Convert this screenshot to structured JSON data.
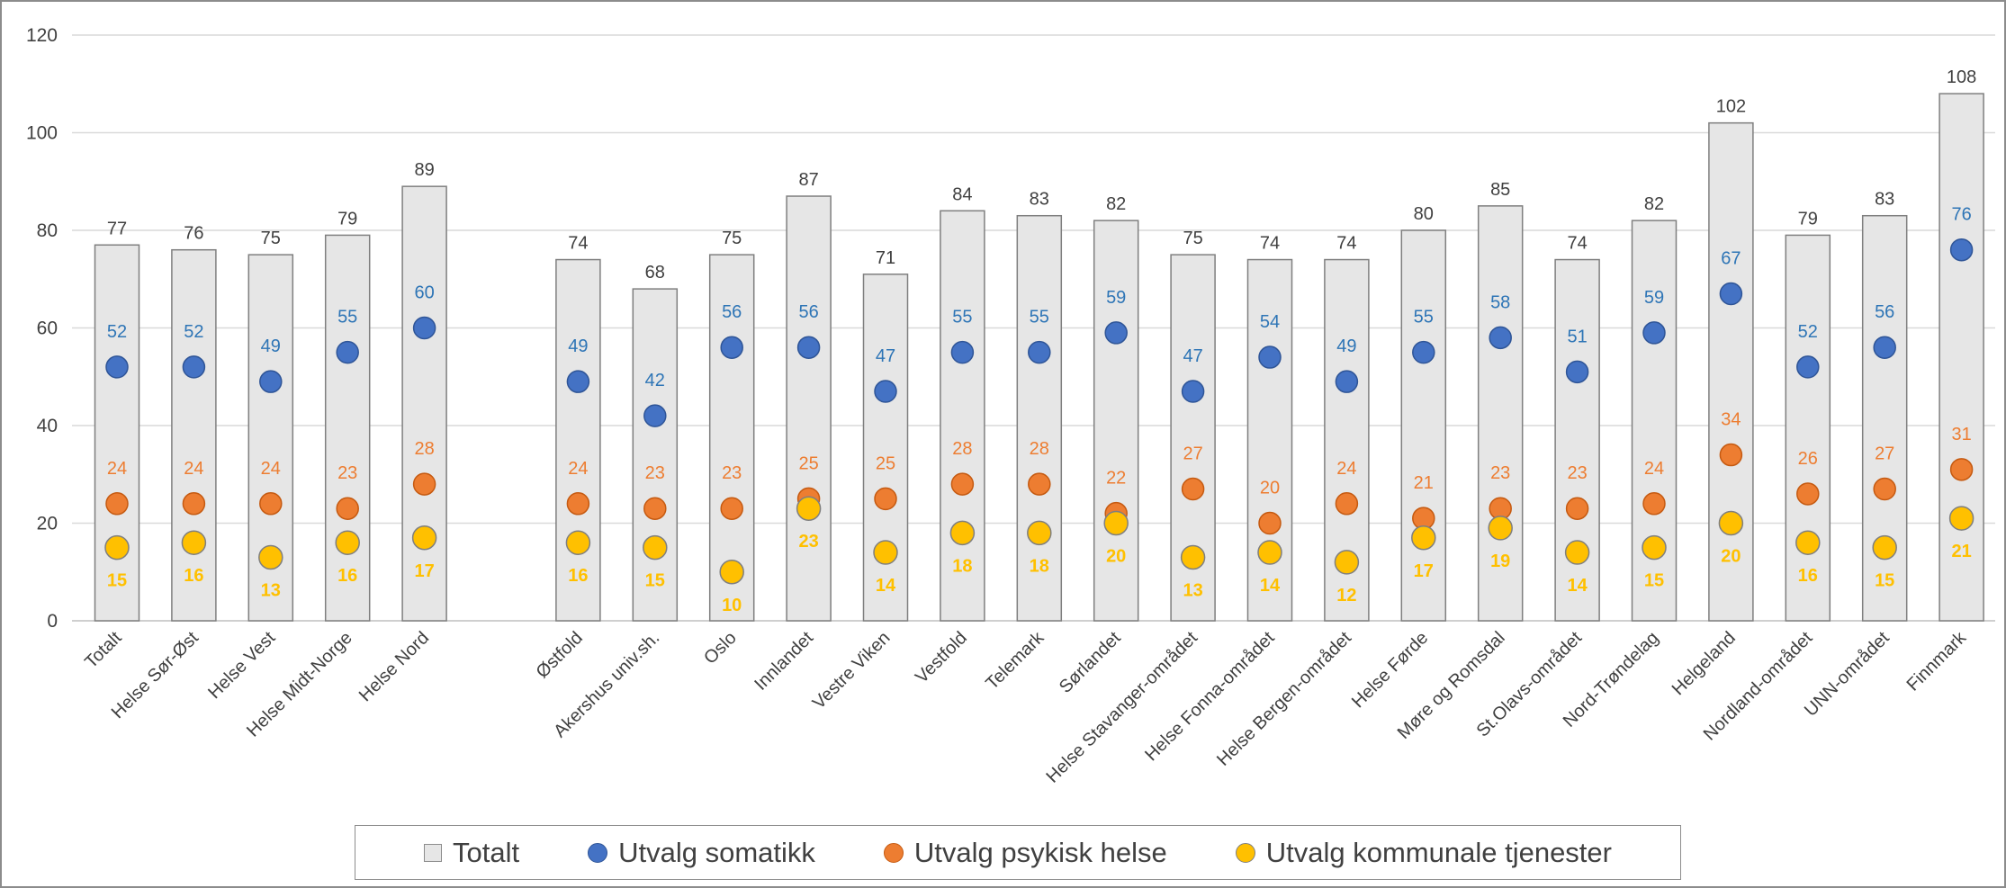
{
  "chart_data": {
    "type": "bar",
    "title": "",
    "xlabel": "",
    "ylabel": "",
    "ylim": [
      0,
      120
    ],
    "yticks": [
      0,
      20,
      40,
      60,
      80,
      100,
      120
    ],
    "grid": true,
    "legend_position": "bottom",
    "categories": [
      "Totalt",
      "Helse Sør-Øst",
      "Helse Vest",
      "Helse Midt-Norge",
      "Helse Nord",
      "Østfold",
      "Akershus univ.sh.",
      "Oslo",
      "Innlandet",
      "Vestre Viken",
      "Vestfold",
      "Telemark",
      "Sørlandet",
      "Helse Stavanger-området",
      "Helse Fonna-området",
      "Helse Bergen-området",
      "Helse Førde",
      "Møre og Romsdal",
      "St.Olavs-området",
      "Nord-Trøndelag",
      "Helgeland",
      "Nordland-området",
      "UNN-området",
      "Finnmark"
    ],
    "gap_after_index": 4,
    "series": [
      {
        "name": "Totalt",
        "kind": "bar",
        "color": "#e6e6e6",
        "values": [
          77,
          76,
          75,
          79,
          89,
          74,
          68,
          75,
          87,
          71,
          84,
          83,
          82,
          75,
          74,
          74,
          80,
          85,
          74,
          82,
          102,
          79,
          83,
          108
        ]
      },
      {
        "name": "Utvalg somatikk",
        "kind": "marker",
        "color": "#4472c4",
        "label_color": "#2e75b6",
        "values": [
          52,
          52,
          49,
          55,
          60,
          49,
          42,
          56,
          56,
          47,
          55,
          55,
          59,
          47,
          54,
          49,
          55,
          58,
          51,
          59,
          67,
          52,
          56,
          76
        ]
      },
      {
        "name": "Utvalg psykisk helse",
        "kind": "marker",
        "color": "#ed7d31",
        "label_color": "#ed7d31",
        "values": [
          24,
          24,
          24,
          23,
          28,
          24,
          23,
          23,
          25,
          25,
          28,
          28,
          22,
          27,
          20,
          24,
          21,
          23,
          23,
          24,
          34,
          26,
          27,
          31
        ]
      },
      {
        "name": "Utvalg kommunale tjenester",
        "kind": "marker",
        "color": "#ffc000",
        "label_color": "#ffc000",
        "values": [
          15,
          16,
          13,
          16,
          17,
          16,
          15,
          10,
          23,
          14,
          18,
          18,
          20,
          13,
          14,
          12,
          17,
          19,
          14,
          15,
          20,
          16,
          15,
          21
        ]
      }
    ]
  }
}
